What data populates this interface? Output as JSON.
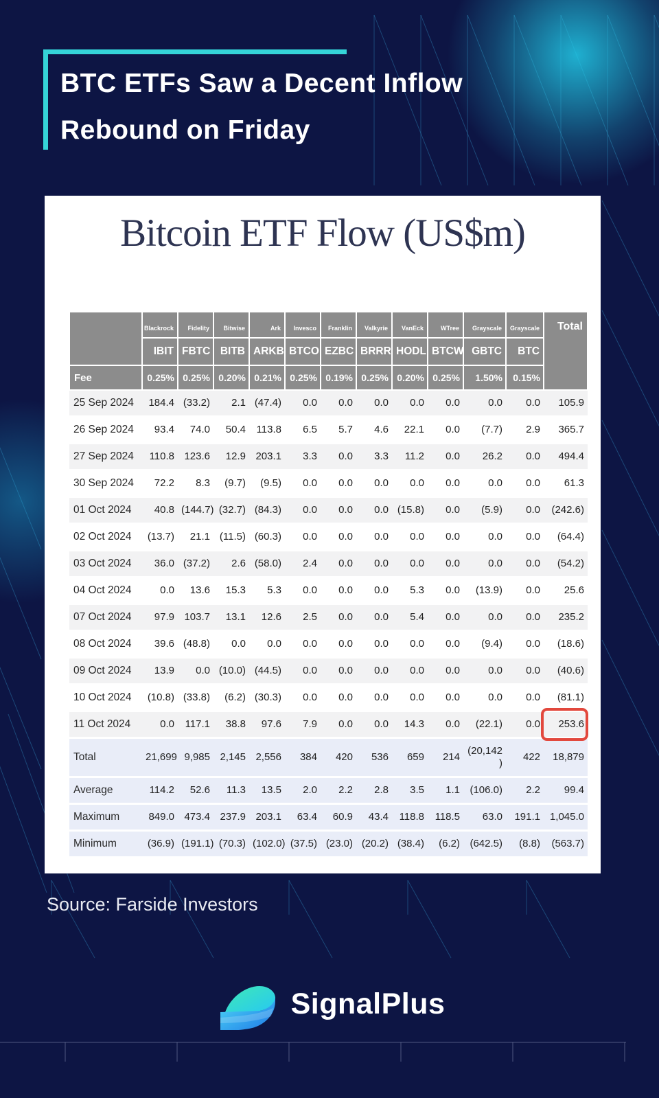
{
  "page": {
    "headline": {
      "line1": "BTC ETFs Saw a Decent Inflow",
      "line2": "Rebound on Friday"
    },
    "source_note": "Source: Farside Investors",
    "brand_name": "SignalPlus",
    "colors": {
      "background": "#0d1544",
      "accent_teal": "#35d4d8",
      "header_gray": "#8c8c8c",
      "summary_row_blue": "#e9edf8",
      "negative_red": "#e23b3b",
      "highlight_red": "#e2483d",
      "card_title_navy": "#2e3452"
    }
  },
  "card": {
    "title": "Bitcoin ETF Flow (US$m)"
  },
  "chart_data": {
    "type": "table",
    "title": "Bitcoin ETF Flow (US$m)",
    "fee_row_label": "Fee",
    "total_column_label": "Total",
    "columns": [
      {
        "institution": "Blackrock",
        "ticker": "IBIT",
        "fee": "0.25%"
      },
      {
        "institution": "Fidelity",
        "ticker": "FBTC",
        "fee": "0.25%"
      },
      {
        "institution": "Bitwise",
        "ticker": "BITB",
        "fee": "0.20%"
      },
      {
        "institution": "Ark",
        "ticker": "ARKB",
        "fee": "0.21%"
      },
      {
        "institution": "Invesco",
        "ticker": "BTCO",
        "fee": "0.25%"
      },
      {
        "institution": "Franklin",
        "ticker": "EZBC",
        "fee": "0.19%"
      },
      {
        "institution": "Valkyrie",
        "ticker": "BRRR",
        "fee": "0.25%"
      },
      {
        "institution": "VanEck",
        "ticker": "HODL",
        "fee": "0.20%"
      },
      {
        "institution": "WTree",
        "ticker": "BTCW",
        "fee": "0.25%"
      },
      {
        "institution": "Grayscale",
        "ticker": "GBTC",
        "fee": "1.50%"
      },
      {
        "institution": "Grayscale",
        "ticker": "BTC",
        "fee": "0.15%"
      }
    ],
    "rows": [
      {
        "label": "25 Sep 2024",
        "values": [
          "184.4",
          "(33.2)",
          "2.1",
          "(47.4)",
          "0.0",
          "0.0",
          "0.0",
          "0.0",
          "0.0",
          "0.0",
          "0.0",
          "105.9"
        ]
      },
      {
        "label": "26 Sep 2024",
        "values": [
          "93.4",
          "74.0",
          "50.4",
          "113.8",
          "6.5",
          "5.7",
          "4.6",
          "22.1",
          "0.0",
          "(7.7)",
          "2.9",
          "365.7"
        ]
      },
      {
        "label": "27 Sep 2024",
        "values": [
          "110.8",
          "123.6",
          "12.9",
          "203.1",
          "3.3",
          "0.0",
          "3.3",
          "11.2",
          "0.0",
          "26.2",
          "0.0",
          "494.4"
        ]
      },
      {
        "label": "30 Sep 2024",
        "values": [
          "72.2",
          "8.3",
          "(9.7)",
          "(9.5)",
          "0.0",
          "0.0",
          "0.0",
          "0.0",
          "0.0",
          "0.0",
          "0.0",
          "61.3"
        ]
      },
      {
        "label": "01 Oct 2024",
        "values": [
          "40.8",
          "(144.7)",
          "(32.7)",
          "(84.3)",
          "0.0",
          "0.0",
          "0.0",
          "(15.8)",
          "0.0",
          "(5.9)",
          "0.0",
          "(242.6)"
        ]
      },
      {
        "label": "02 Oct 2024",
        "values": [
          "(13.7)",
          "21.1",
          "(11.5)",
          "(60.3)",
          "0.0",
          "0.0",
          "0.0",
          "0.0",
          "0.0",
          "0.0",
          "0.0",
          "(64.4)"
        ]
      },
      {
        "label": "03 Oct 2024",
        "values": [
          "36.0",
          "(37.2)",
          "2.6",
          "(58.0)",
          "2.4",
          "0.0",
          "0.0",
          "0.0",
          "0.0",
          "0.0",
          "0.0",
          "(54.2)"
        ]
      },
      {
        "label": "04 Oct 2024",
        "values": [
          "0.0",
          "13.6",
          "15.3",
          "5.3",
          "0.0",
          "0.0",
          "0.0",
          "5.3",
          "0.0",
          "(13.9)",
          "0.0",
          "25.6"
        ]
      },
      {
        "label": "07 Oct 2024",
        "values": [
          "97.9",
          "103.7",
          "13.1",
          "12.6",
          "2.5",
          "0.0",
          "0.0",
          "5.4",
          "0.0",
          "0.0",
          "0.0",
          "235.2"
        ]
      },
      {
        "label": "08 Oct 2024",
        "values": [
          "39.6",
          "(48.8)",
          "0.0",
          "0.0",
          "0.0",
          "0.0",
          "0.0",
          "0.0",
          "0.0",
          "(9.4)",
          "0.0",
          "(18.6)"
        ]
      },
      {
        "label": "09 Oct 2024",
        "values": [
          "13.9",
          "0.0",
          "(10.0)",
          "(44.5)",
          "0.0",
          "0.0",
          "0.0",
          "0.0",
          "0.0",
          "0.0",
          "0.0",
          "(40.6)"
        ]
      },
      {
        "label": "10 Oct 2024",
        "values": [
          "(10.8)",
          "(33.8)",
          "(6.2)",
          "(30.3)",
          "0.0",
          "0.0",
          "0.0",
          "0.0",
          "0.0",
          "0.0",
          "0.0",
          "(81.1)"
        ]
      },
      {
        "label": "11 Oct 2024",
        "values": [
          "0.0",
          "117.1",
          "38.8",
          "97.6",
          "7.9",
          "0.0",
          "0.0",
          "14.3",
          "0.0",
          "(22.1)",
          "0.0",
          "253.6"
        ]
      }
    ],
    "summary_rows": [
      {
        "label": "Total",
        "values": [
          "21,699",
          "9,985",
          "2,145",
          "2,556",
          "384",
          "420",
          "536",
          "659",
          "214",
          "(20,142\n)",
          "422",
          "18,879"
        ]
      },
      {
        "label": "Average",
        "values": [
          "114.2",
          "52.6",
          "11.3",
          "13.5",
          "2.0",
          "2.2",
          "2.8",
          "3.5",
          "1.1",
          "(106.0)",
          "2.2",
          "99.4"
        ]
      },
      {
        "label": "Maximum",
        "values": [
          "849.0",
          "473.4",
          "237.9",
          "203.1",
          "63.4",
          "60.9",
          "43.4",
          "118.8",
          "118.5",
          "63.0",
          "191.1",
          "1,045.0"
        ]
      },
      {
        "label": "Minimum",
        "values": [
          "(36.9)",
          "(191.1)",
          "(70.3)",
          "(102.0)",
          "(37.5)",
          "(23.0)",
          "(20.2)",
          "(38.4)",
          "(6.2)",
          "(642.5)",
          "(8.8)",
          "(563.7)"
        ]
      }
    ],
    "highlight": {
      "row_index": 12,
      "col_index": 11,
      "value": "253.6"
    }
  }
}
